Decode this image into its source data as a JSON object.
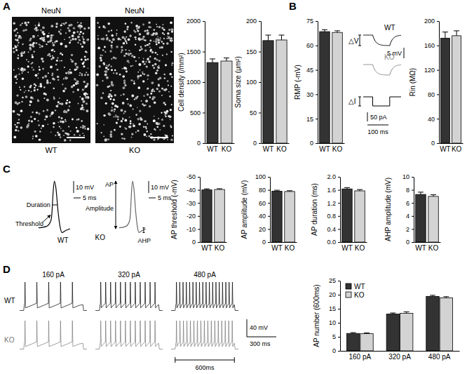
{
  "panels": [
    "A",
    "B",
    "C",
    "D"
  ],
  "images": [
    {
      "stain": "NeuN",
      "label": "WT"
    },
    {
      "stain": "NeuN",
      "label": "KO"
    }
  ],
  "b_traces": {
    "labels": [
      "WT",
      "KO"
    ],
    "delta_v": "△V",
    "delta_i": "△I",
    "scale_v": "5 mV",
    "scale_i": "50 pA",
    "scale_t": "100 ms"
  },
  "c_traces": {
    "labels": [
      "WT",
      "KO"
    ],
    "scale_v": "10 mV",
    "scale_t": "5 ms",
    "duration": "Duration",
    "threshold": "Threshold",
    "ap": "AP",
    "amplitude": "Amplitude",
    "ahp": "AHP"
  },
  "d_traces": {
    "currents": [
      "160 pA",
      "320 pA",
      "480 pA"
    ],
    "labels": [
      "WT",
      "KO"
    ],
    "scale_v": "40 mV",
    "scale_t": "300 ms",
    "window": "600ms"
  },
  "chart_data": [
    {
      "type": "bar",
      "ylabel": "Cell density (/mm²)",
      "categories": [
        "WT",
        "KO"
      ],
      "values": [
        1320,
        1345
      ],
      "errors": [
        60,
        50
      ],
      "colors": [
        "#333333",
        "#d3d3d3"
      ],
      "ylim": [
        0,
        2000
      ],
      "yticks": [
        0,
        500,
        1000,
        1500,
        2000
      ]
    },
    {
      "type": "bar",
      "ylabel": "Soma size (μm²)",
      "categories": [
        "WT",
        "KO"
      ],
      "values": [
        168,
        169
      ],
      "errors": [
        9,
        8
      ],
      "colors": [
        "#333333",
        "#d3d3d3"
      ],
      "ylim": [
        0,
        200
      ],
      "yticks": [
        0,
        50,
        100,
        150,
        200
      ]
    },
    {
      "type": "bar",
      "ylabel": "RMP (-mV)",
      "categories": [
        "WT",
        "KO"
      ],
      "values": [
        68.5,
        68
      ],
      "errors": [
        1.2,
        1.0
      ],
      "colors": [
        "#333333",
        "#d3d3d3"
      ],
      "ylim": [
        0,
        75
      ],
      "yticks": [
        0,
        15,
        30,
        45,
        60,
        75
      ]
    },
    {
      "type": "bar",
      "ylabel": "Rin (MΩ)",
      "categories": [
        "WT",
        "KO"
      ],
      "values": [
        172,
        176
      ],
      "errors": [
        10,
        8
      ],
      "colors": [
        "#333333",
        "#d3d3d3"
      ],
      "ylim": [
        0,
        200
      ],
      "yticks": [
        0,
        40,
        80,
        120,
        160,
        200
      ]
    },
    {
      "type": "bar",
      "ylabel": "AP threshold (-mV)",
      "categories": [
        "WT",
        "KO"
      ],
      "values": [
        -40,
        -40.3
      ],
      "errors": [
        0.8,
        0.6
      ],
      "colors": [
        "#333333",
        "#d3d3d3"
      ],
      "ylim": [
        0,
        -50
      ],
      "yticks": [
        0,
        -10,
        -20,
        -30,
        -40,
        -50
      ]
    },
    {
      "type": "bar",
      "ylabel": "AP amplitude (mV)",
      "categories": [
        "WT",
        "KO"
      ],
      "values": [
        78,
        77.5
      ],
      "errors": [
        1.5,
        1.2
      ],
      "colors": [
        "#333333",
        "#d3d3d3"
      ],
      "ylim": [
        0,
        100
      ],
      "yticks": [
        0,
        20,
        40,
        60,
        80,
        100
      ]
    },
    {
      "type": "bar",
      "ylabel": "AP duration (ms)",
      "categories": [
        "WT",
        "KO"
      ],
      "values": [
        1.63,
        1.57
      ],
      "errors": [
        0.04,
        0.04
      ],
      "colors": [
        "#333333",
        "#d3d3d3"
      ],
      "ylim": [
        0,
        2
      ],
      "yticks": [
        {
          "value": 0,
          "label": "0.0"
        },
        0.4,
        0.8,
        1.2,
        1.6,
        {
          "value": 2,
          "label": "2.0"
        }
      ]
    },
    {
      "type": "bar",
      "ylabel": "AHP amplitude (mV)",
      "categories": [
        "WT",
        "KO"
      ],
      "values": [
        7.3,
        7.0
      ],
      "errors": [
        0.35,
        0.25
      ],
      "colors": [
        "#333333",
        "#d3d3d3"
      ],
      "ylim": [
        0,
        10
      ],
      "yticks": [
        0,
        2,
        4,
        6,
        8,
        10
      ]
    },
    {
      "type": "bar",
      "ylabel": "AP number (600ms)",
      "categories": [
        "160 pA",
        "320 pA",
        "480 pA"
      ],
      "series": [
        {
          "name": "WT",
          "color": "#333333",
          "values": [
            6.2,
            13.1,
            19.4
          ],
          "errors": [
            0.3,
            0.4,
            0.4
          ]
        },
        {
          "name": "KO",
          "color": "#d3d3d3",
          "values": [
            6.1,
            13.4,
            18.9
          ],
          "errors": [
            0.3,
            0.5,
            0.4
          ]
        }
      ],
      "legend": "top-left",
      "ylim": [
        0,
        25
      ],
      "yticks": [
        0,
        5,
        10,
        15,
        20,
        25
      ]
    }
  ]
}
